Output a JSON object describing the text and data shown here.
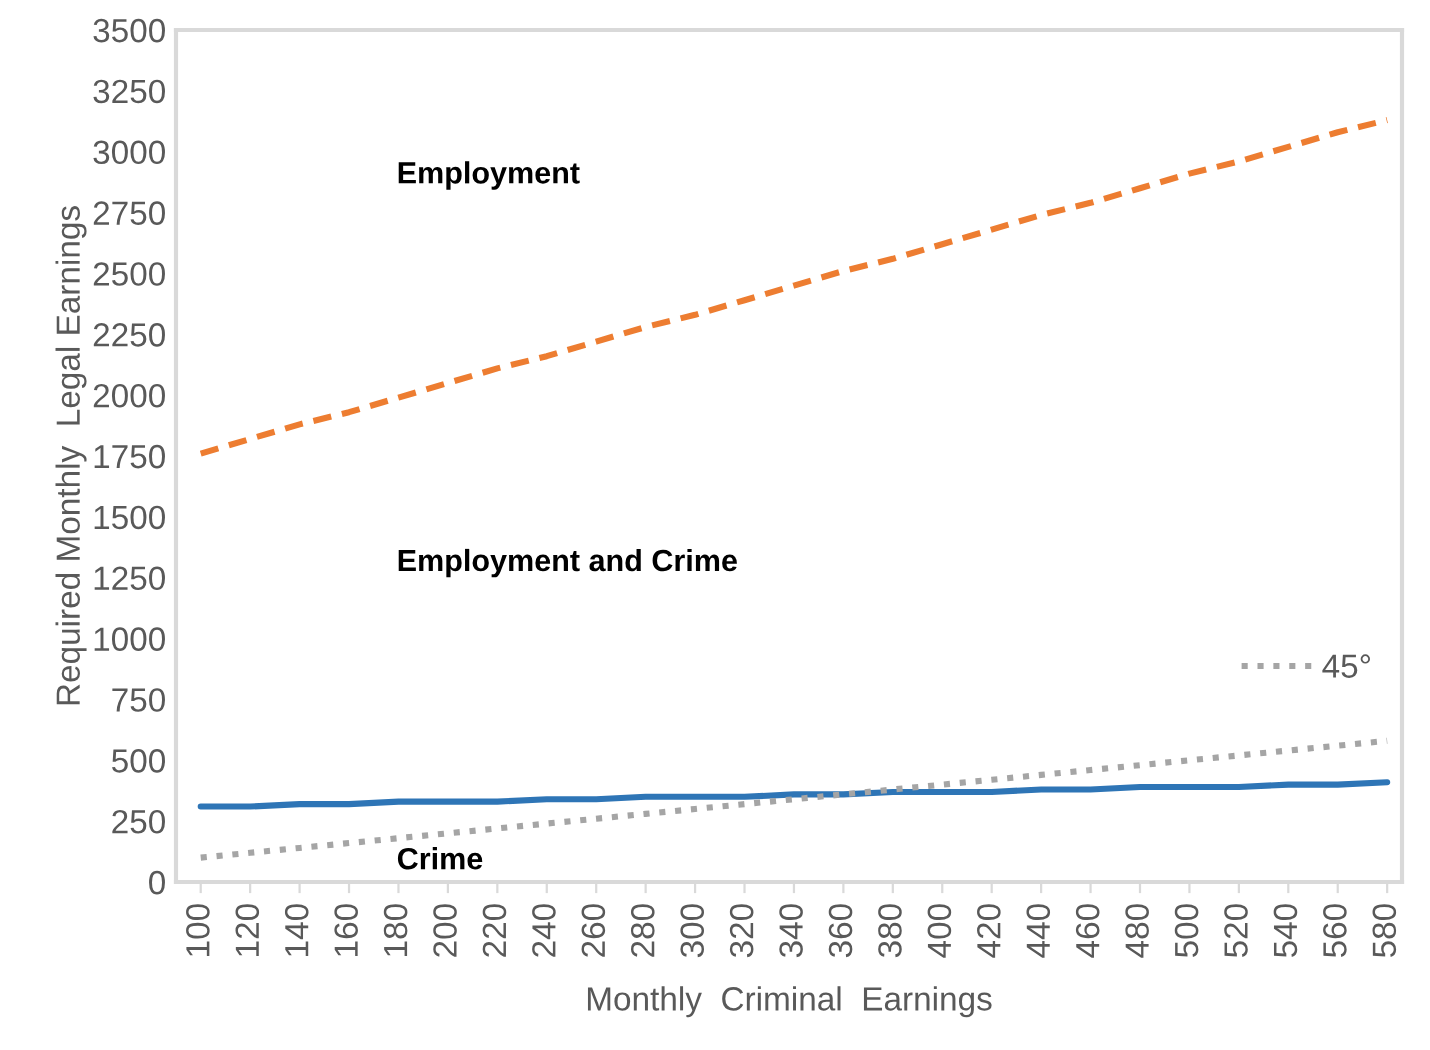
{
  "chart_data": {
    "type": "line",
    "xlabel": "Monthly  Criminal  Earnings",
    "ylabel": "Required Monthly  Legal Earnings",
    "categories": [
      "100",
      "120",
      "140",
      "160",
      "180",
      "200",
      "220",
      "240",
      "260",
      "280",
      "300",
      "320",
      "340",
      "360",
      "380",
      "400",
      "420",
      "440",
      "460",
      "480",
      "500",
      "520",
      "540",
      "560",
      "580"
    ],
    "ylim": [
      0,
      3500
    ],
    "yticks": [
      0,
      250,
      500,
      750,
      1000,
      1250,
      1500,
      1750,
      2000,
      2250,
      2500,
      2750,
      3000,
      3250,
      3500
    ],
    "grid": false,
    "legend": "right",
    "annotations": [
      "Employment",
      "Employment and Crime",
      "Crime"
    ],
    "series": [
      {
        "values": [
          1760,
          1820,
          1880,
          1930,
          1990,
          2050,
          2110,
          2160,
          2220,
          2280,
          2330,
          2390,
          2450,
          2510,
          2560,
          2620,
          2680,
          2740,
          2790,
          2850,
          2910,
          2960,
          3020,
          3080,
          3130
        ],
        "color": "#ed7d31",
        "line_style": "dashed"
      },
      {
        "values": [
          310,
          310,
          320,
          320,
          330,
          330,
          330,
          340,
          340,
          350,
          350,
          350,
          360,
          360,
          370,
          370,
          370,
          380,
          380,
          390,
          390,
          390,
          400,
          400,
          410
        ],
        "color": "#2e75b6",
        "line_style": "solid"
      },
      {
        "name": "45°",
        "values": [
          100,
          120,
          140,
          160,
          180,
          200,
          220,
          240,
          260,
          280,
          300,
          320,
          340,
          360,
          380,
          400,
          420,
          440,
          460,
          480,
          500,
          520,
          540,
          560,
          580
        ],
        "color": "#a5a5a5",
        "line_style": "dotted"
      }
    ]
  }
}
